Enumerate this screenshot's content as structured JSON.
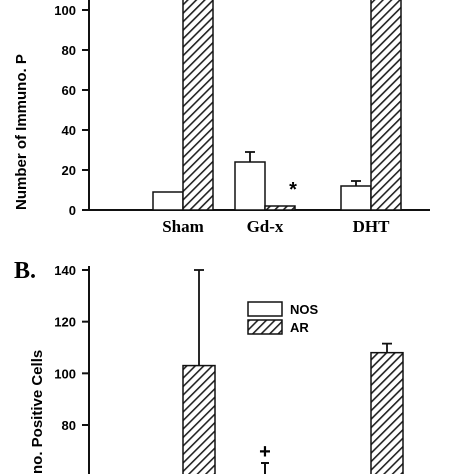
{
  "chart_data": [
    {
      "type": "bar",
      "panel_label": "",
      "categories": [
        "Sham",
        "Gd-x",
        "DHT"
      ],
      "series": [
        {
          "name": "NOS",
          "values": [
            9,
            24,
            12
          ],
          "errors": [
            0,
            5,
            2.5
          ]
        },
        {
          "name": "AR",
          "values": [
            null,
            2,
            null
          ],
          "errors": [
            0,
            0,
            0
          ]
        }
      ],
      "ylabel": "Number of Immuno. P",
      "ylim": [
        0,
        100
      ],
      "yticks": [
        "0",
        "20",
        "40",
        "60",
        "80",
        "100"
      ],
      "annotations": [
        {
          "text": "*",
          "category": "Gd-x",
          "series": "AR"
        }
      ]
    },
    {
      "type": "bar",
      "panel_label": "B.",
      "categories": [
        "Sham",
        "Gd-x",
        "DHT"
      ],
      "series": [
        {
          "name": "NOS",
          "values": [
            null,
            null,
            null
          ],
          "errors": [
            0,
            0,
            0
          ]
        },
        {
          "name": "AR",
          "values": [
            103,
            null,
            108
          ],
          "errors": [
            37,
            0,
            3.5
          ]
        }
      ],
      "ylabel": "no. Positive Cells",
      "ylim": [
        80,
        140
      ],
      "yticks": [
        "80",
        "100",
        "120",
        "140"
      ],
      "legend": [
        "NOS",
        "AR"
      ],
      "legend_position": "top-right",
      "annotations": [
        {
          "text": "+",
          "category": "Gd-x",
          "series": "AR"
        }
      ]
    }
  ]
}
